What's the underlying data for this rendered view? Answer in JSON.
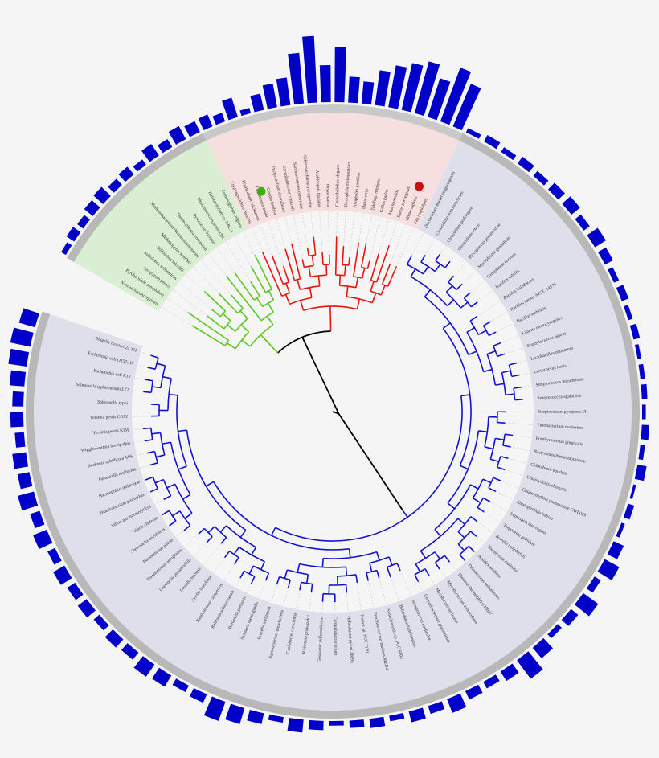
{
  "bar_color": "#0000c8",
  "clades": [
    {
      "color": "#59c81f",
      "band": "#daeed3",
      "leaves": [
        {
          "name": "Nanoarchaeum equitans",
          "bar": 6
        },
        {
          "name": "Pyrobaculum aerophilum",
          "bar": 10
        },
        {
          "name": "Aeropyrum pernix",
          "bar": 8
        },
        {
          "name": "Sulfolobus solfataricus",
          "bar": 12
        },
        {
          "name": "Sulfolobus tokodaii",
          "bar": 14
        },
        {
          "name": "Methanopyrus kandleri",
          "bar": 9
        },
        {
          "name": "Methanobacterium thermautotrophicum",
          "bar": 11
        },
        {
          "name": "Thermoplasma volcanium",
          "bar": 7
        },
        {
          "name": "Pyrococcus furiosus",
          "bar": 15
        },
        {
          "name": "Methanococcus jannaschii",
          "bar": 10
        },
        {
          "name": "Halobacterium sp. NRC-1",
          "bar": 16
        },
        {
          "name": "Archaeoglobus fulgidus",
          "bar": 13
        }
      ]
    },
    {
      "color": "#e8150f",
      "band": "#f6dfdf",
      "leaves": [
        {
          "name": "Cryptosporidium hominis",
          "bar": 14
        },
        {
          "name": "Plasmodium falciparum",
          "bar": 10
        },
        {
          "name": "Leishmania major",
          "bar": 22
        },
        {
          "name": "Giardia lamblia",
          "bar": 6
        },
        {
          "name": "Dictyostelium discoideum",
          "bar": 18
        },
        {
          "name": "Encephalitozoon cuniculi",
          "bar": 26
        },
        {
          "name": "Saccharomyces cerevisiae",
          "bar": 30
        },
        {
          "name": "Schizosaccharomyces pombe",
          "bar": 55
        },
        {
          "name": "Arabidopsis thaliana",
          "bar": 72
        },
        {
          "name": "Oryza sativa",
          "bar": 40
        },
        {
          "name": "Caenorhabditis elegans",
          "bar": 60
        },
        {
          "name": "Drosophila melanogaster",
          "bar": 28
        },
        {
          "name": "Anopheles gambiae",
          "bar": 24
        },
        {
          "name": "Danio rerio",
          "bar": 38
        },
        {
          "name": "Takifugu rubripes",
          "bar": 46
        },
        {
          "name": "Gallus gallus",
          "bar": 52
        },
        {
          "name": "Mus musculus",
          "bar": 58
        },
        {
          "name": "Rattus norvegicus",
          "bar": 44
        },
        {
          "name": "Homo sapiens",
          "bar": 62
        },
        {
          "name": "Pan troglodytes",
          "bar": 50
        }
      ]
    },
    {
      "color": "#1212d0",
      "band": "#dfdfeb",
      "leaves": [
        {
          "name": "Thermoanaerobacter tengcongensis",
          "bar": 5
        },
        {
          "name": "Clostridium acetobutylicum",
          "bar": 8
        },
        {
          "name": "Clostridium perfringens",
          "bar": 6
        },
        {
          "name": "Clostridium tetani",
          "bar": 9
        },
        {
          "name": "Mycoplasma pneumoniae",
          "bar": 7
        },
        {
          "name": "Mycoplasma genitalium",
          "bar": 10
        },
        {
          "name": "Ureaplasma parvum",
          "bar": 12
        },
        {
          "name": "Bacillus subtilis",
          "bar": 8
        },
        {
          "name": "Bacillus halodurans",
          "bar": 14
        },
        {
          "name": "Bacillus cereus ATCC 14579",
          "bar": 10
        },
        {
          "name": "Bacillus anthracis",
          "bar": 6
        },
        {
          "name": "Listeria monocytogenes",
          "bar": 8
        },
        {
          "name": "Staphylococcus aureus",
          "bar": 5
        },
        {
          "name": "Lactobacillus plantarum",
          "bar": 7
        },
        {
          "name": "Lactococcus lactis",
          "bar": 4
        },
        {
          "name": "Streptococcus pneumoniae",
          "bar": 5
        },
        {
          "name": "Streptococcus agalactiae",
          "bar": 6
        },
        {
          "name": "Streptococcus pyogenes M1",
          "bar": 4
        },
        {
          "name": "Fusobacterium nucleatum",
          "bar": 8
        },
        {
          "name": "Porphyromonas gingivalis",
          "bar": 5
        },
        {
          "name": "Bacteroides thetaiotaomicron",
          "bar": 10
        },
        {
          "name": "Chlorobium tepidum",
          "bar": 3
        },
        {
          "name": "Chlamydia trachomatis",
          "bar": 7
        },
        {
          "name": "Chlamydophila pneumoniae CWL029",
          "bar": 4
        },
        {
          "name": "Rhodopirellula baltica",
          "bar": 12
        },
        {
          "name": "Leptospira interrogans",
          "bar": 18
        },
        {
          "name": "Treponema pallidum",
          "bar": 8
        },
        {
          "name": "Borrelia burgdorferi",
          "bar": 20
        },
        {
          "name": "Thermotoga maritima",
          "bar": 10
        },
        {
          "name": "Aquifex aeolicus",
          "bar": 6
        },
        {
          "name": "Deinococcus radiodurans",
          "bar": 15
        },
        {
          "name": "Thermus thermophilus HB27",
          "bar": 25
        },
        {
          "name": "Mycobacterium tuberculosis",
          "bar": 12
        },
        {
          "name": "Mycobacterium leprae",
          "bar": 8
        },
        {
          "name": "Corynebacterium glutamicum",
          "bar": 10
        },
        {
          "name": "Streptomyces coelicolor",
          "bar": 16
        },
        {
          "name": "Bifidobacterium longum",
          "bar": 9
        },
        {
          "name": "Synechocystis sp. PCC 6803",
          "bar": 12
        },
        {
          "name": "Prochlorococcus marinus MED4",
          "bar": 6
        },
        {
          "name": "Nostoc sp. PCC 7120",
          "bar": 10
        },
        {
          "name": "Helicobacter pylori 26695",
          "bar": 8
        },
        {
          "name": "Campylobacter jejuni",
          "bar": 5
        },
        {
          "name": "Geobacter sulfurreducens",
          "bar": 10
        },
        {
          "name": "Rickettsia prowazekii",
          "bar": 14
        },
        {
          "name": "Caulobacter crescentus",
          "bar": 6
        },
        {
          "name": "Agrobacterium tumefaciens",
          "bar": 12
        },
        {
          "name": "Brucella melitensis",
          "bar": 18
        },
        {
          "name": "Neisseria meningitidis",
          "bar": 22
        },
        {
          "name": "Bordetella pertussis",
          "bar": 10
        },
        {
          "name": "Ralstonia solanacearum",
          "bar": 8
        },
        {
          "name": "Xanthomonas campestris",
          "bar": 14
        },
        {
          "name": "Xylella fastidiosa",
          "bar": 16
        },
        {
          "name": "Coxiella burnetii",
          "bar": 10
        },
        {
          "name": "Legionella pneumophila",
          "bar": 12
        },
        {
          "name": "Pseudomonas aeruginosa",
          "bar": 8
        },
        {
          "name": "Pseudomonas putida",
          "bar": 12
        },
        {
          "name": "Shewanella oneidensis",
          "bar": 10
        },
        {
          "name": "Vibrio cholerae",
          "bar": 14
        },
        {
          "name": "Vibrio parahaemolyticus",
          "bar": 9
        },
        {
          "name": "Photobacterium profundum",
          "bar": 16
        },
        {
          "name": "Haemophilus influenzae",
          "bar": 11
        },
        {
          "name": "Pasteurella multocida",
          "bar": 18
        },
        {
          "name": "Buchnera aphidicola APS",
          "bar": 13
        },
        {
          "name": "Wigglesworthia brevipalpis",
          "bar": 15
        },
        {
          "name": "Yersinia pestis KIM",
          "bar": 10
        },
        {
          "name": "Yersinia pestis CO92",
          "bar": 14
        },
        {
          "name": "Salmonella typhi",
          "bar": 12
        },
        {
          "name": "Salmonella typhimurium LT2",
          "bar": 16
        },
        {
          "name": "Escherichia coli K12",
          "bar": 20
        },
        {
          "name": "Escherichia coli O157:H7",
          "bar": 22
        },
        {
          "name": "Shigella flexneri 2a 301",
          "bar": 18
        }
      ]
    }
  ]
}
